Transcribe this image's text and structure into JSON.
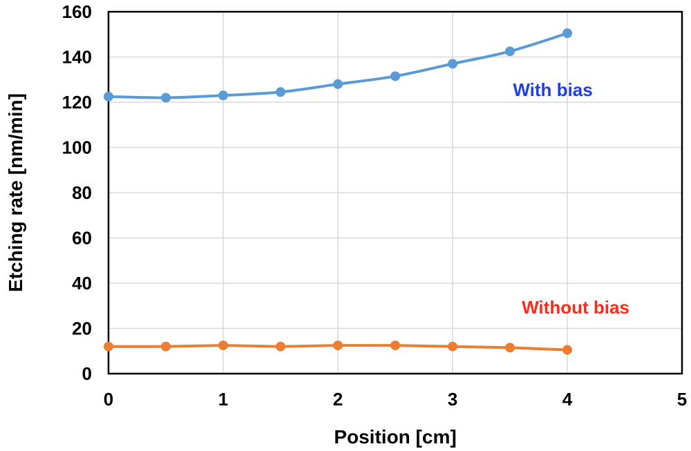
{
  "chart_data": {
    "type": "scatter",
    "title": "",
    "xlabel": "Position [cm]",
    "ylabel": "Etching rate [nm/min]",
    "xlim": [
      0,
      5
    ],
    "ylim": [
      0,
      160
    ],
    "xticks": [
      0,
      1,
      2,
      3,
      4,
      5
    ],
    "yticks": [
      0,
      20,
      40,
      60,
      80,
      100,
      120,
      140,
      160
    ],
    "grid": true,
    "series": [
      {
        "name": "With bias",
        "color": "#5b9bd5",
        "label_color": "#1f3fe0",
        "smooth": true,
        "points": [
          [
            0,
            122.5
          ],
          [
            0.5,
            122
          ],
          [
            1,
            123
          ],
          [
            1.5,
            124.5
          ],
          [
            2,
            128
          ],
          [
            2.5,
            131.5
          ],
          [
            3,
            137
          ],
          [
            3.5,
            142.5
          ],
          [
            4,
            150.5
          ]
        ]
      },
      {
        "name": "Without bias",
        "color": "#ed7d31",
        "label_color": "#ff2a1a",
        "smooth": false,
        "points": [
          [
            0,
            12
          ],
          [
            0.5,
            12
          ],
          [
            1,
            12.5
          ],
          [
            1.5,
            12
          ],
          [
            2,
            12.5
          ],
          [
            2.5,
            12.5
          ],
          [
            3,
            12
          ],
          [
            3.5,
            11.5
          ],
          [
            4,
            10.5
          ]
        ]
      }
    ]
  }
}
